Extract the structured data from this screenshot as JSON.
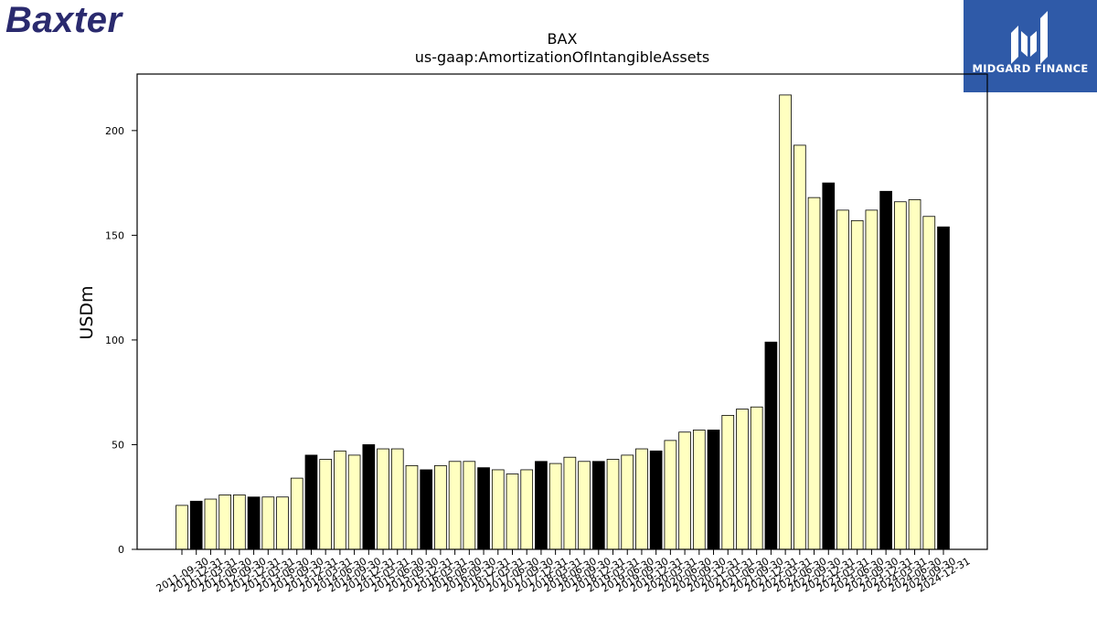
{
  "logos": {
    "left_text": "Baxter",
    "right_text": "MIDGARD FINANCE",
    "right_bg": "#2f5aa8"
  },
  "chart_data": {
    "type": "bar",
    "title": "BAX",
    "subtitle": "us-gaap:AmortizationOfIntangibleAssets",
    "ylabel": "USDm",
    "xlabel": "",
    "ylim": [
      0,
      227
    ],
    "yticks": [
      0,
      50,
      100,
      150,
      200
    ],
    "grid": false,
    "colors": {
      "light": "#ffffc0",
      "dark": "#000000",
      "edge": "#000000"
    },
    "categories": [
      "2011-09-30",
      "2011-12-31",
      "2012-03-31",
      "2012-06-30",
      "2012-09-30",
      "2012-12-31",
      "2013-03-31",
      "2013-06-30",
      "2013-09-30",
      "2013-12-31",
      "2014-03-31",
      "2014-06-30",
      "2014-09-30",
      "2014-12-31",
      "2015-03-31",
      "2015-06-30",
      "2015-09-30",
      "2015-12-31",
      "2016-03-31",
      "2016-06-30",
      "2016-09-30",
      "2016-12-31",
      "2017-03-31",
      "2017-06-30",
      "2017-09-30",
      "2017-12-31",
      "2018-03-31",
      "2018-06-30",
      "2018-09-30",
      "2018-12-31",
      "2019-03-31",
      "2019-06-30",
      "2019-09-30",
      "2019-12-31",
      "2020-03-31",
      "2020-06-30",
      "2020-09-30",
      "2020-12-31",
      "2021-03-31",
      "2021-06-30",
      "2021-09-30",
      "2021-12-31",
      "2022-03-31",
      "2022-06-30",
      "2022-09-30",
      "2022-12-31",
      "2023-03-31",
      "2023-06-30",
      "2023-09-30",
      "2023-12-31",
      "2024-03-31",
      "2024-06-30",
      "2024-09-30",
      "2024-12-31"
    ],
    "values": [
      21,
      23,
      24,
      26,
      26,
      25,
      25,
      25,
      34,
      45,
      43,
      47,
      45,
      50,
      48,
      48,
      40,
      38,
      40,
      42,
      42,
      39,
      38,
      36,
      38,
      42,
      41,
      44,
      42,
      42,
      43,
      45,
      48,
      47,
      52,
      56,
      57,
      57,
      64,
      67,
      68,
      99,
      217,
      193,
      168,
      175,
      162,
      157,
      162,
      171,
      166,
      167,
      159,
      154
    ],
    "highlight": [
      false,
      true,
      false,
      false,
      false,
      true,
      false,
      false,
      false,
      true,
      false,
      false,
      false,
      true,
      false,
      false,
      false,
      true,
      false,
      false,
      false,
      true,
      false,
      false,
      false,
      true,
      false,
      false,
      false,
      true,
      false,
      false,
      false,
      true,
      false,
      false,
      false,
      true,
      false,
      false,
      false,
      true,
      false,
      false,
      false,
      true,
      false,
      false,
      false,
      true,
      false,
      false,
      false,
      true
    ]
  }
}
